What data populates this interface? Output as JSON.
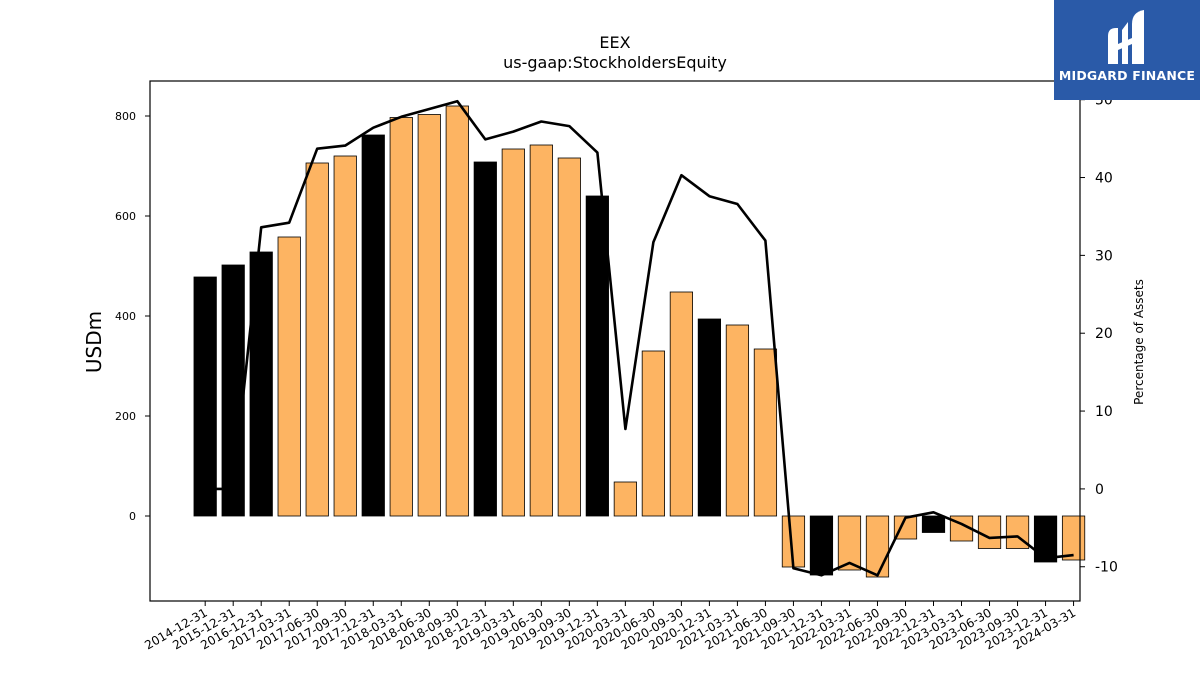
{
  "chart_data": {
    "type": "bar",
    "title": "EEX",
    "subtitle": "us-gaap:StockholdersEquity",
    "ylabel": "USDm",
    "y2label": "Percentage of Assets",
    "ylim": [
      -170,
      870
    ],
    "y2lim": [
      -14.4,
      52.4
    ],
    "yticks": [
      0,
      200,
      400,
      600,
      800
    ],
    "y2ticks": [
      -10,
      0,
      10,
      20,
      30,
      40,
      50
    ],
    "categories": [
      "2014-12-31",
      "2015-12-31",
      "2016-12-31",
      "2017-03-31",
      "2017-06-30",
      "2017-09-30",
      "2017-12-31",
      "2018-03-31",
      "2018-06-30",
      "2018-09-30",
      "2018-12-31",
      "2019-03-31",
      "2019-06-30",
      "2019-09-30",
      "2019-12-31",
      "2020-03-31",
      "2020-06-30",
      "2020-09-30",
      "2020-12-31",
      "2021-03-31",
      "2021-06-30",
      "2021-09-30",
      "2021-12-31",
      "2022-03-31",
      "2022-06-30",
      "2022-09-30",
      "2022-12-31",
      "2023-03-31",
      "2023-06-30",
      "2023-09-30",
      "2023-12-31",
      "2024-03-31"
    ],
    "series": [
      {
        "kind": "bar",
        "values": [
          478,
          502,
          528,
          558,
          706,
          720,
          762,
          797,
          803,
          820,
          708,
          734,
          742,
          716,
          640,
          68,
          330,
          448,
          394,
          382,
          334,
          -102,
          -118,
          -108,
          -122,
          -46,
          -33,
          -50,
          -65,
          -65,
          -92,
          -88
        ],
        "annual": [
          true,
          true,
          true,
          false,
          false,
          false,
          true,
          false,
          false,
          false,
          true,
          false,
          false,
          false,
          true,
          false,
          false,
          false,
          true,
          false,
          false,
          false,
          true,
          false,
          false,
          false,
          true,
          false,
          false,
          false,
          true,
          false
        ]
      },
      {
        "kind": "line",
        "axis": "right",
        "values": [
          0.0,
          0.0,
          33.6,
          34.2,
          43.7,
          44.1,
          46.4,
          47.8,
          48.8,
          49.8,
          44.9,
          45.9,
          47.2,
          46.6,
          43.2,
          7.7,
          31.7,
          40.3,
          37.6,
          36.6,
          31.9,
          -10.2,
          -11.1,
          -9.5,
          -11.1,
          -3.7,
          -3.0,
          -4.5,
          -6.3,
          -6.1,
          -8.9,
          -8.5
        ]
      }
    ],
    "colors": {
      "annual": "#000000",
      "quarterly": "#fdb462",
      "line": "#000000"
    },
    "grid": false
  },
  "logo": {
    "text": "MIDGARD FINANCE"
  }
}
